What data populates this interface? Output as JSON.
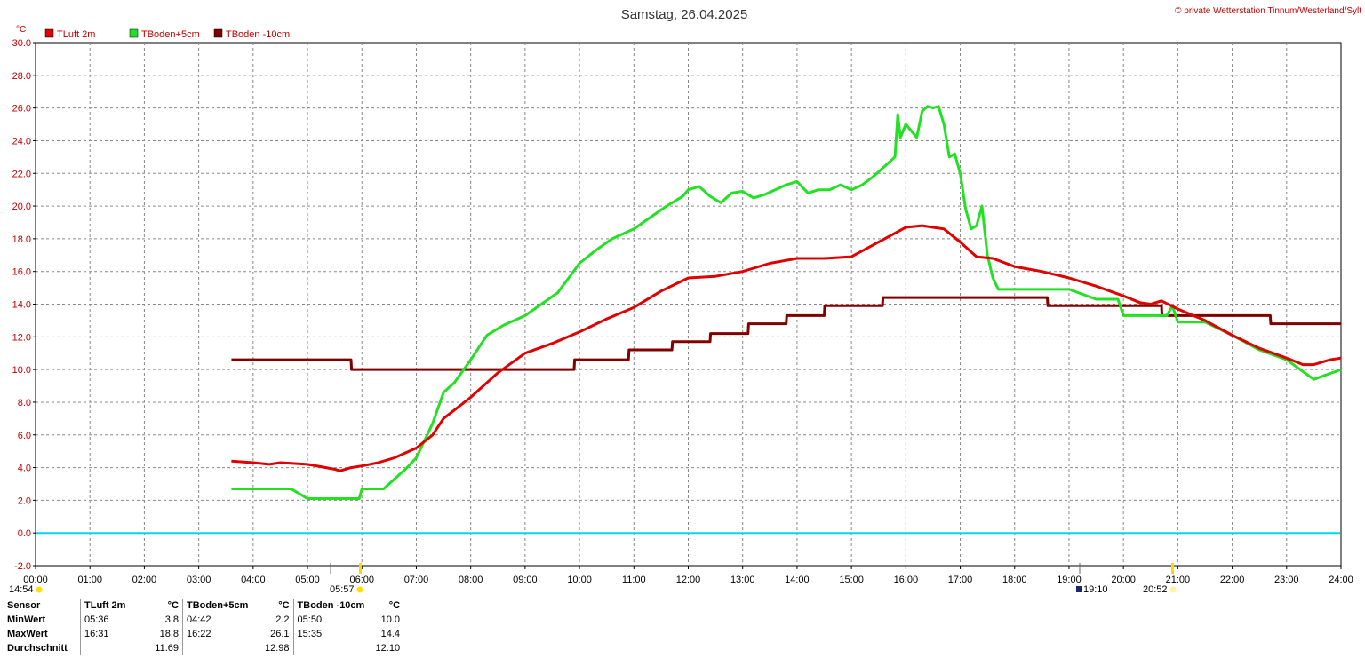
{
  "title": "Samstag, 26.04.2025",
  "credit": "© private Wetterstation Tinnum/Westerland/Sylt",
  "unit_label": "°C",
  "colors": {
    "tluft": "#e00000",
    "tboden5": "#22e022",
    "tboden10": "#800000",
    "zero": "#00d8e8",
    "grid": "#888888"
  },
  "markers": {
    "sunrise_left": "14:54",
    "sunrise": "05:57",
    "sunset_start": "19:10",
    "sunset": "20:52"
  },
  "stats": {
    "header": [
      "Sensor",
      "TLuft 2m",
      "°C",
      "TBoden+5cm",
      "°C",
      "TBoden -10cm",
      "°C"
    ],
    "rows": [
      {
        "label": "MinWert",
        "c1t": "05:36",
        "c1v": "3.8",
        "c2t": "04:42",
        "c2v": "2.2",
        "c3t": "05:50",
        "c3v": "10.0"
      },
      {
        "label": "MaxWert",
        "c1t": "16:31",
        "c1v": "18.8",
        "c2t": "16:22",
        "c2v": "26.1",
        "c3t": "15:35",
        "c3v": "14.4"
      },
      {
        "label": "Durchschnitt",
        "c1t": "",
        "c1v": "11.69",
        "c2t": "",
        "c2v": "12.98",
        "c3t": "",
        "c3v": "12.10"
      }
    ]
  },
  "chart_data": {
    "type": "line",
    "xlabel": "",
    "ylabel": "°C",
    "xlim": [
      0,
      24
    ],
    "ylim": [
      -2,
      30
    ],
    "grid": true,
    "legend_position": "top-left",
    "x_ticks": [
      "00:00",
      "01:00",
      "02:00",
      "03:00",
      "04:00",
      "05:00",
      "06:00",
      "07:00",
      "08:00",
      "09:00",
      "10:00",
      "11:00",
      "12:00",
      "13:00",
      "14:00",
      "15:00",
      "16:00",
      "17:00",
      "18:00",
      "19:00",
      "20:00",
      "21:00",
      "22:00",
      "23:00",
      "24:00"
    ],
    "y_ticks": [
      "-2.0",
      "0.0",
      "2.0",
      "4.0",
      "6.0",
      "8.0",
      "10.0",
      "12.0",
      "14.0",
      "16.0",
      "18.0",
      "20.0",
      "22.0",
      "24.0",
      "26.0",
      "28.0",
      "30.0"
    ],
    "series": [
      {
        "name": "TLuft 2m",
        "color": "#e00000",
        "x": [
          3.6,
          4.0,
          4.3,
          4.5,
          5.0,
          5.5,
          5.6,
          5.8,
          6.0,
          6.3,
          6.6,
          7.0,
          7.3,
          7.5,
          8.0,
          8.5,
          9.0,
          9.5,
          10.0,
          10.5,
          11.0,
          11.5,
          12.0,
          12.5,
          13.0,
          13.5,
          14.0,
          14.5,
          15.0,
          15.5,
          16.0,
          16.3,
          16.5,
          16.7,
          17.0,
          17.3,
          17.6,
          18.0,
          18.5,
          19.0,
          19.5,
          20.0,
          20.3,
          20.5,
          20.7,
          21.0,
          21.5,
          22.0,
          22.5,
          23.0,
          23.3,
          23.5,
          23.8,
          24.0
        ],
        "y": [
          4.4,
          4.3,
          4.2,
          4.3,
          4.2,
          3.9,
          3.8,
          4.0,
          4.1,
          4.3,
          4.6,
          5.2,
          6.0,
          7.0,
          8.3,
          9.8,
          11.0,
          11.6,
          12.3,
          13.1,
          13.8,
          14.8,
          15.6,
          15.7,
          16.0,
          16.5,
          16.8,
          16.8,
          16.9,
          17.8,
          18.7,
          18.8,
          18.7,
          18.6,
          17.8,
          16.9,
          16.8,
          16.3,
          16.0,
          15.6,
          15.1,
          14.5,
          14.1,
          14.0,
          14.2,
          13.7,
          13.0,
          12.1,
          11.3,
          10.7,
          10.3,
          10.3,
          10.6,
          10.7
        ]
      },
      {
        "name": "TBoden+5cm",
        "color": "#22e022",
        "x": [
          3.6,
          4.0,
          4.7,
          5.0,
          5.5,
          5.95,
          6.0,
          6.4,
          6.6,
          6.8,
          7.0,
          7.3,
          7.5,
          7.7,
          8.0,
          8.3,
          8.6,
          9.0,
          9.3,
          9.6,
          10.0,
          10.3,
          10.6,
          11.0,
          11.3,
          11.6,
          11.9,
          12.0,
          12.2,
          12.4,
          12.6,
          12.8,
          13.0,
          13.2,
          13.4,
          13.6,
          13.8,
          14.0,
          14.2,
          14.4,
          14.6,
          14.8,
          15.0,
          15.2,
          15.4,
          15.6,
          15.8,
          15.85,
          15.9,
          16.0,
          16.1,
          16.2,
          16.3,
          16.4,
          16.5,
          16.6,
          16.7,
          16.8,
          16.9,
          17.0,
          17.1,
          17.2,
          17.3,
          17.4,
          17.5,
          17.6,
          17.7,
          18.0,
          18.5,
          19.0,
          19.5,
          19.9,
          20.0,
          20.5,
          20.8,
          20.9,
          21.0,
          21.5,
          22.0,
          22.5,
          23.0,
          23.5,
          24.0
        ],
        "y": [
          2.7,
          2.7,
          2.7,
          2.1,
          2.1,
          2.1,
          2.7,
          2.7,
          3.3,
          3.9,
          4.6,
          6.7,
          8.6,
          9.2,
          10.6,
          12.1,
          12.7,
          13.3,
          14.0,
          14.7,
          16.5,
          17.3,
          18.0,
          18.6,
          19.3,
          20.0,
          20.6,
          21.0,
          21.2,
          20.6,
          20.2,
          20.8,
          20.9,
          20.5,
          20.7,
          21.0,
          21.3,
          21.5,
          20.8,
          21.0,
          21.0,
          21.3,
          21.0,
          21.3,
          21.8,
          22.4,
          23.0,
          25.6,
          24.2,
          25.0,
          24.6,
          24.2,
          25.8,
          26.1,
          26.0,
          26.1,
          25.0,
          23.0,
          23.2,
          22.0,
          19.8,
          18.6,
          18.8,
          20.0,
          17.0,
          15.6,
          14.9,
          14.9,
          14.9,
          14.9,
          14.3,
          14.3,
          13.3,
          13.3,
          13.3,
          13.9,
          12.9,
          12.9,
          12.1,
          11.2,
          10.6,
          9.4,
          10.0
        ]
      },
      {
        "name": "TBoden -10cm",
        "color": "#800000",
        "x": [
          3.6,
          5.8,
          5.81,
          9.9,
          9.91,
          10.9,
          10.91,
          11.7,
          11.71,
          12.4,
          12.41,
          13.1,
          13.11,
          13.8,
          13.81,
          14.5,
          14.51,
          15.57,
          15.58,
          18.6,
          18.61,
          20.7,
          20.71,
          22.7,
          22.71,
          24.0
        ],
        "y": [
          10.6,
          10.6,
          10.0,
          10.0,
          10.6,
          10.6,
          11.2,
          11.2,
          11.7,
          11.7,
          12.2,
          12.2,
          12.8,
          12.8,
          13.3,
          13.3,
          13.9,
          13.9,
          14.4,
          14.4,
          13.9,
          13.9,
          13.3,
          13.3,
          12.8,
          12.8
        ]
      }
    ],
    "reference_line": {
      "y": 0.0,
      "color": "#00d8e8"
    }
  }
}
